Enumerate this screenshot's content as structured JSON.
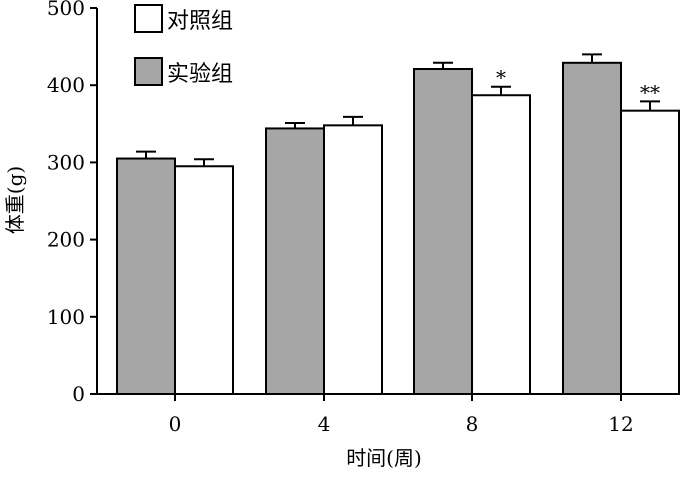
{
  "chart_data": {
    "type": "bar",
    "title": "",
    "xlabel": "时间(周)",
    "ylabel": "体重(g)",
    "categories": [
      "0",
      "4",
      "8",
      "12"
    ],
    "ylim": [
      0,
      500
    ],
    "yticks": [
      0,
      100,
      200,
      300,
      400,
      500
    ],
    "grid": false,
    "legend_position": "top-left",
    "series": [
      {
        "name": "实验组",
        "color": "#a6a6a6",
        "values": [
          305,
          344,
          421,
          429
        ],
        "errors": [
          9,
          7,
          8,
          11
        ],
        "significance": [
          "",
          "",
          "",
          ""
        ]
      },
      {
        "name": "对照组",
        "color": "#ffffff",
        "values": [
          295,
          348,
          387,
          367
        ],
        "errors": [
          9,
          11,
          11,
          12
        ],
        "significance": [
          "",
          "",
          "*",
          "**"
        ]
      }
    ],
    "legend_order": [
      1,
      0
    ]
  }
}
